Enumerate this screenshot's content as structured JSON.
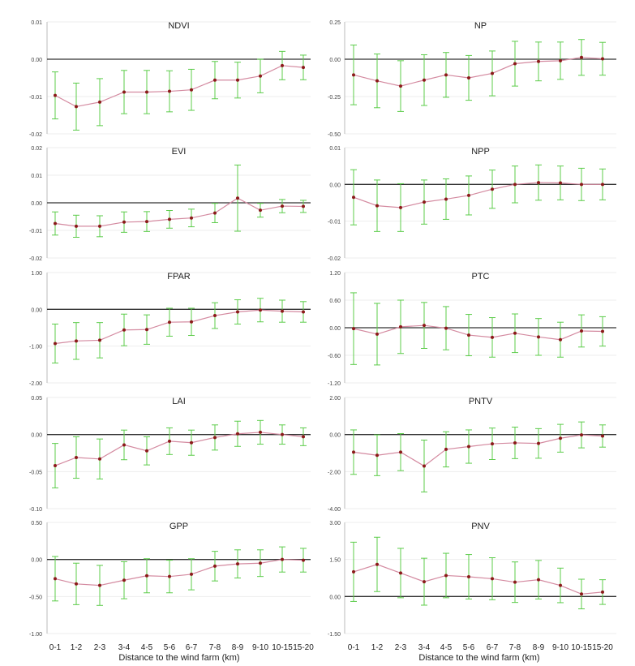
{
  "figure": {
    "xlabel_left": "Distance to the wind farm (km)",
    "xlabel_right": "Distance to the wind farm (km)",
    "categories": [
      "0-1",
      "1-2",
      "2-3",
      "3-4",
      "4-5",
      "5-6",
      "6-7",
      "7-8",
      "8-9",
      "9-10",
      "10-15",
      "15-20"
    ],
    "colors": {
      "line": "#d48aa0",
      "marker": "#8b1a1a",
      "error": "#5ccc4a",
      "zero": "#333333",
      "grid": "#eeeeee",
      "axis": "#bbbbbb",
      "text": "#222222"
    }
  },
  "chart_data": [
    {
      "type": "line",
      "title": "NDVI",
      "ylim": [
        -0.02,
        0.01
      ],
      "yticks": [
        0.01,
        0.0,
        -0.01,
        -0.02
      ],
      "ytick_labels": [
        "0.01",
        "0.00",
        "-0.01",
        "-0.02"
      ],
      "values": [
        -0.0097,
        -0.0127,
        -0.0115,
        -0.0088,
        -0.0088,
        -0.0086,
        -0.0082,
        -0.0056,
        -0.0056,
        -0.0045,
        -0.0017,
        -0.0022
      ],
      "err": [
        0.0063,
        0.0063,
        0.0063,
        0.0058,
        0.0058,
        0.0055,
        0.0055,
        0.005,
        0.0048,
        0.0045,
        0.0038,
        0.0033
      ]
    },
    {
      "type": "line",
      "title": "NP",
      "ylim": [
        -0.5,
        0.25
      ],
      "yticks": [
        0.25,
        0.0,
        -0.25,
        -0.5
      ],
      "ytick_labels": [
        "0.25",
        "0.00",
        "-0.25",
        "-0.50"
      ],
      "values": [
        -0.105,
        -0.145,
        -0.18,
        -0.14,
        -0.105,
        -0.125,
        -0.095,
        -0.03,
        -0.015,
        -0.01,
        0.012,
        0.003
      ],
      "err": [
        0.2,
        0.18,
        0.17,
        0.17,
        0.15,
        0.15,
        0.15,
        0.15,
        0.13,
        0.125,
        0.12,
        0.11
      ]
    },
    {
      "type": "line",
      "title": "EVI",
      "ylim": [
        -0.02,
        0.02
      ],
      "yticks": [
        0.02,
        0.01,
        0.0,
        -0.01,
        -0.02
      ],
      "ytick_labels": [
        "0.02",
        "0.01",
        "0.00",
        "-0.01",
        "-0.02"
      ],
      "values": [
        -0.0075,
        -0.0085,
        -0.0085,
        -0.007,
        -0.0068,
        -0.006,
        -0.0055,
        -0.0037,
        0.0017,
        -0.0027,
        -0.0012,
        -0.0013
      ],
      "err": [
        0.0042,
        0.004,
        0.0038,
        0.0037,
        0.0036,
        0.0032,
        0.0032,
        0.0035,
        0.012,
        0.0025,
        0.0024,
        0.0022
      ]
    },
    {
      "type": "line",
      "title": "NPP",
      "ylim": [
        -0.02,
        0.01
      ],
      "yticks": [
        0.01,
        0.0,
        -0.01,
        -0.02
      ],
      "ytick_labels": [
        "0.01",
        "0.00",
        "-0.01",
        "-0.02"
      ],
      "values": [
        -0.0035,
        -0.0058,
        -0.0063,
        -0.0048,
        -0.004,
        -0.003,
        -0.0013,
        0.0,
        0.0005,
        0.0004,
        0.0,
        0.0
      ],
      "err": [
        0.0075,
        0.007,
        0.0065,
        0.006,
        0.0055,
        0.0053,
        0.0052,
        0.005,
        0.0048,
        0.0046,
        0.0044,
        0.0042
      ]
    },
    {
      "type": "line",
      "title": "FPAR",
      "ylim": [
        -2.0,
        1.0
      ],
      "yticks": [
        1.0,
        0.0,
        -1.0,
        -2.0
      ],
      "ytick_labels": [
        "1.00",
        "0.00",
        "-1.00",
        "-2.00"
      ],
      "values": [
        -0.93,
        -0.86,
        -0.84,
        -0.56,
        -0.55,
        -0.35,
        -0.34,
        -0.17,
        -0.07,
        -0.02,
        -0.05,
        -0.07
      ],
      "err": [
        0.53,
        0.5,
        0.48,
        0.43,
        0.4,
        0.38,
        0.37,
        0.35,
        0.33,
        0.32,
        0.3,
        0.28
      ]
    },
    {
      "type": "line",
      "title": "PTC",
      "ylim": [
        -1.2,
        1.2
      ],
      "yticks": [
        1.2,
        0.6,
        0.0,
        -0.6,
        -1.2
      ],
      "ytick_labels": [
        "1.20",
        "0.60",
        "0.00",
        "-0.60",
        "-1.20"
      ],
      "values": [
        -0.02,
        -0.14,
        0.02,
        0.05,
        -0.01,
        -0.16,
        -0.21,
        -0.12,
        -0.2,
        -0.26,
        -0.07,
        -0.08
      ],
      "err": [
        0.78,
        0.67,
        0.58,
        0.5,
        0.47,
        0.45,
        0.43,
        0.42,
        0.4,
        0.38,
        0.35,
        0.32
      ]
    },
    {
      "type": "line",
      "title": "LAI",
      "ylim": [
        -0.1,
        0.05
      ],
      "yticks": [
        0.05,
        0.0,
        -0.05,
        -0.1
      ],
      "ytick_labels": [
        "0.05",
        "0.00",
        "-0.05",
        "-0.10"
      ],
      "values": [
        -0.042,
        -0.031,
        -0.033,
        -0.014,
        -0.022,
        -0.009,
        -0.011,
        -0.004,
        0.001,
        0.003,
        0.0,
        -0.003
      ],
      "err": [
        0.03,
        0.028,
        0.027,
        0.02,
        0.019,
        0.018,
        0.017,
        0.017,
        0.017,
        0.016,
        0.013,
        0.012
      ]
    },
    {
      "type": "line",
      "title": "PNTV",
      "ylim": [
        -4.0,
        2.0
      ],
      "yticks": [
        2.0,
        0.0,
        -2.0,
        -4.0
      ],
      "ytick_labels": [
        "2.00",
        "0.00",
        "-2.00",
        "-4.00"
      ],
      "values": [
        -0.95,
        -1.12,
        -0.95,
        -1.7,
        -0.8,
        -0.65,
        -0.5,
        -0.45,
        -0.48,
        -0.2,
        -0.02,
        -0.08
      ],
      "err": [
        1.2,
        1.1,
        1.0,
        1.4,
        0.95,
        0.9,
        0.85,
        0.85,
        0.8,
        0.75,
        0.7,
        0.6
      ]
    },
    {
      "type": "line",
      "title": "GPP",
      "ylim": [
        -1.0,
        0.5
      ],
      "yticks": [
        0.5,
        0.0,
        -0.5,
        -1.0
      ],
      "ytick_labels": [
        "0.50",
        "0.00",
        "-0.50",
        "-1.00"
      ],
      "values": [
        -0.26,
        -0.33,
        -0.35,
        -0.28,
        -0.22,
        -0.23,
        -0.2,
        -0.09,
        -0.06,
        -0.05,
        0.0,
        -0.01
      ],
      "err": [
        0.3,
        0.28,
        0.27,
        0.25,
        0.23,
        0.22,
        0.21,
        0.2,
        0.19,
        0.18,
        0.17,
        0.16
      ]
    },
    {
      "type": "line",
      "title": "PNV",
      "ylim": [
        -1.5,
        3.0
      ],
      "yticks": [
        3.0,
        1.5,
        0.0,
        -1.5
      ],
      "ytick_labels": [
        "3.00",
        "1.50",
        "0.00",
        "-1.50"
      ],
      "values": [
        1.0,
        1.3,
        0.95,
        0.6,
        0.85,
        0.8,
        0.72,
        0.58,
        0.68,
        0.45,
        0.1,
        0.18
      ],
      "err": [
        1.2,
        1.1,
        1.0,
        0.95,
        0.9,
        0.9,
        0.85,
        0.82,
        0.78,
        0.7,
        0.6,
        0.5
      ]
    }
  ]
}
